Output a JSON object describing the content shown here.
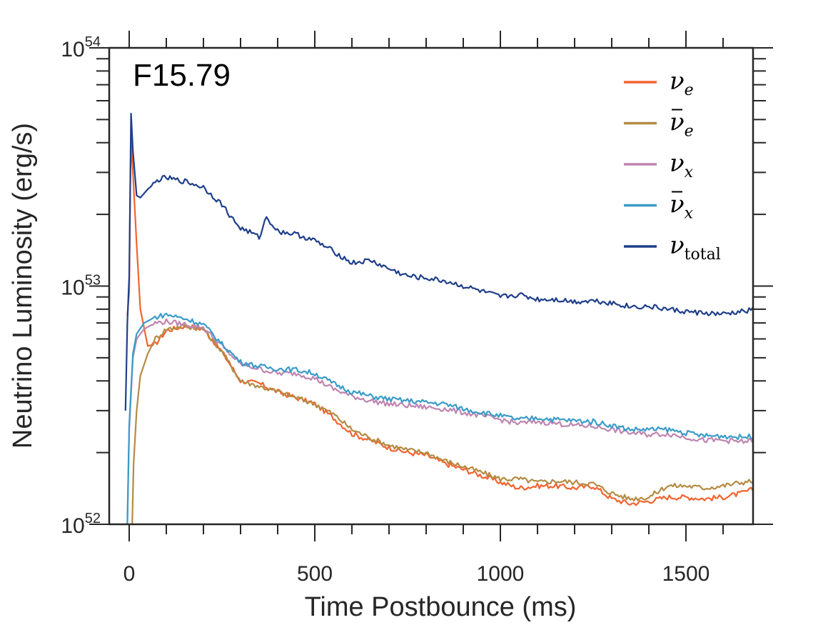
{
  "chart_data": {
    "type": "line",
    "panel_label": "F15.79",
    "xlabel": "Time Postbounce (ms)",
    "ylabel": "Neutrino Luminosity (erg/s)",
    "xlim": [
      -10,
      1690
    ],
    "ylim": [
      1e+52,
      1e+54
    ],
    "yscale": "log",
    "x_ticks": [
      0,
      500,
      1000,
      1500
    ],
    "x_tick_labels": [
      "0",
      "500",
      "1000",
      "1500"
    ],
    "y_ticks": [
      1e+52,
      1e+53,
      1e+54
    ],
    "y_tick_labels": [
      {
        "base": "10",
        "exp": "52"
      },
      {
        "base": "10",
        "exp": "53"
      },
      {
        "base": "10",
        "exp": "54"
      }
    ],
    "legend_position": "top-right",
    "series": [
      {
        "name": "νe",
        "symbol": "ν",
        "bar": false,
        "sub": "e",
        "color": "#f26430",
        "x": [
          -5,
          0,
          3,
          6,
          10,
          20,
          30,
          50,
          70,
          100,
          150,
          200,
          250,
          300,
          350,
          400,
          450,
          500,
          550,
          600,
          650,
          700,
          750,
          800,
          850,
          900,
          950,
          1000,
          1050,
          1100,
          1150,
          1200,
          1250,
          1300,
          1350,
          1400,
          1450,
          1500,
          1550,
          1600,
          1650,
          1690
        ],
        "y": [
          7.5e+52,
          9.5e+52,
          2.8e+53,
          4.1e+53,
          3e+53,
          1.5e+53,
          8e+52,
          5.6e+52,
          5.7e+52,
          6.5e+52,
          6.8e+52,
          6.6e+52,
          5.3e+52,
          4e+52,
          3.9e+52,
          3.6e+52,
          3.4e+52,
          3.2e+52,
          2.8e+52,
          2.4e+52,
          2.25e+52,
          2.1e+52,
          2e+52,
          1.95e+52,
          1.8e+52,
          1.7e+52,
          1.6e+52,
          1.5e+52,
          1.42e+52,
          1.45e+52,
          1.45e+52,
          1.42e+52,
          1.45e+52,
          1.28e+52,
          1.22e+52,
          1.25e+52,
          1.3e+52,
          1.3e+52,
          1.28e+52,
          1.3e+52,
          1.35e+52,
          1.42e+52
        ]
      },
      {
        "name": "ν̄e",
        "symbol": "ν",
        "bar": true,
        "sub": "e",
        "color": "#b58b44",
        "x": [
          8,
          12,
          20,
          30,
          50,
          70,
          100,
          150,
          200,
          250,
          300,
          350,
          400,
          450,
          500,
          550,
          600,
          650,
          700,
          750,
          800,
          850,
          900,
          950,
          1000,
          1050,
          1100,
          1150,
          1200,
          1250,
          1300,
          1350,
          1400,
          1450,
          1500,
          1550,
          1600,
          1650,
          1690
        ],
        "y": [
          1e+52,
          1.8e+52,
          3e+52,
          4.2e+52,
          5.2e+52,
          6e+52,
          6.6e+52,
          6.8e+52,
          6.6e+52,
          5.3e+52,
          4e+52,
          3.8e+52,
          3.6e+52,
          3.4e+52,
          3.2e+52,
          2.9e+52,
          2.5e+52,
          2.3e+52,
          2.15e+52,
          2.05e+52,
          2e+52,
          1.85e+52,
          1.75e+52,
          1.65e+52,
          1.55e+52,
          1.55e+52,
          1.5e+52,
          1.52e+52,
          1.5e+52,
          1.48e+52,
          1.35e+52,
          1.28e+52,
          1.3e+52,
          1.45e+52,
          1.45e+52,
          1.42e+52,
          1.45e+52,
          1.5e+52,
          1.52e+52
        ]
      },
      {
        "name": "νx",
        "symbol": "ν",
        "bar": false,
        "sub": "x",
        "color": "#bf85b0",
        "x": [
          -5,
          0,
          10,
          20,
          40,
          70,
          100,
          150,
          200,
          250,
          300,
          350,
          400,
          450,
          500,
          550,
          600,
          650,
          700,
          750,
          800,
          850,
          900,
          950,
          1000,
          1050,
          1100,
          1150,
          1200,
          1250,
          1300,
          1350,
          1400,
          1450,
          1500,
          1550,
          1600,
          1650,
          1690
        ],
        "y": [
          1e+52,
          2.5e+52,
          5e+52,
          6e+52,
          6.6e+52,
          7e+52,
          7.1e+52,
          6.9e+52,
          6.7e+52,
          5.6e+52,
          4.7e+52,
          4.5e+52,
          4.3e+52,
          4.3e+52,
          4.1e+52,
          3.7e+52,
          3.45e+52,
          3.3e+52,
          3.2e+52,
          3.15e+52,
          3.1e+52,
          3.05e+52,
          2.95e+52,
          2.85e+52,
          2.75e+52,
          2.65e+52,
          2.7e+52,
          2.65e+52,
          2.6e+52,
          2.58e+52,
          2.5e+52,
          2.42e+52,
          2.38e+52,
          2.4e+52,
          2.32e+52,
          2.25e+52,
          2.25e+52,
          2.22e+52,
          2.25e+52
        ]
      },
      {
        "name": "ν̄x",
        "symbol": "ν",
        "bar": true,
        "sub": "x",
        "color": "#3a9cc8",
        "x": [
          -5,
          0,
          10,
          20,
          40,
          70,
          100,
          150,
          200,
          250,
          300,
          350,
          400,
          450,
          500,
          550,
          600,
          650,
          700,
          750,
          800,
          850,
          900,
          950,
          1000,
          1050,
          1100,
          1150,
          1200,
          1250,
          1300,
          1350,
          1400,
          1450,
          1500,
          1550,
          1600,
          1650,
          1690
        ],
        "y": [
          1e+52,
          2.6e+52,
          5.2e+52,
          6.3e+52,
          7e+52,
          7.4e+52,
          7.6e+52,
          7.3e+52,
          6.9e+52,
          5.7e+52,
          4.8e+52,
          4.6e+52,
          4.5e+52,
          4.45e+52,
          4.3e+52,
          3.9e+52,
          3.6e+52,
          3.45e+52,
          3.35e+52,
          3.3e+52,
          3.25e+52,
          3.2e+52,
          3.05e+52,
          2.95e+52,
          2.85e+52,
          2.75e+52,
          2.8e+52,
          2.75e+52,
          2.72e+52,
          2.7e+52,
          2.6e+52,
          2.5e+52,
          2.5e+52,
          2.5e+52,
          2.42e+52,
          2.35e+52,
          2.35e+52,
          2.32e+52,
          2.35e+52
        ]
      },
      {
        "name": "νtotal",
        "symbol": "ν",
        "bar": false,
        "sub": "total",
        "color": "#1f3f8a",
        "x": [
          -10,
          -5,
          0,
          5,
          10,
          20,
          30,
          50,
          80,
          100,
          120,
          150,
          200,
          250,
          280,
          300,
          320,
          350,
          370,
          400,
          450,
          500,
          550,
          600,
          650,
          700,
          750,
          800,
          850,
          900,
          950,
          1000,
          1050,
          1100,
          1150,
          1200,
          1250,
          1300,
          1350,
          1400,
          1450,
          1500,
          1550,
          1600,
          1650,
          1690
        ],
        "y": [
          3e+52,
          7e+52,
          1.1e+53,
          5.3e+53,
          3.7e+53,
          2.4e+53,
          2.35e+53,
          2.55e+53,
          2.8e+53,
          2.85e+53,
          2.8e+53,
          2.75e+53,
          2.6e+53,
          2.2e+53,
          1.9e+53,
          1.75e+53,
          1.7e+53,
          1.6e+53,
          1.95e+53,
          1.7e+53,
          1.65e+53,
          1.55e+53,
          1.4e+53,
          1.25e+53,
          1.28e+53,
          1.18e+53,
          1.1e+53,
          1.08e+53,
          1.05e+53,
          1e+53,
          9.5e+52,
          9e+52,
          9.2e+52,
          8.8e+52,
          8.8e+52,
          8.6e+52,
          8.7e+52,
          8.5e+52,
          8.2e+52,
          8.2e+52,
          8e+52,
          7.8e+52,
          7.7e+52,
          7.6e+52,
          7.8e+52,
          8e+52
        ]
      }
    ]
  }
}
